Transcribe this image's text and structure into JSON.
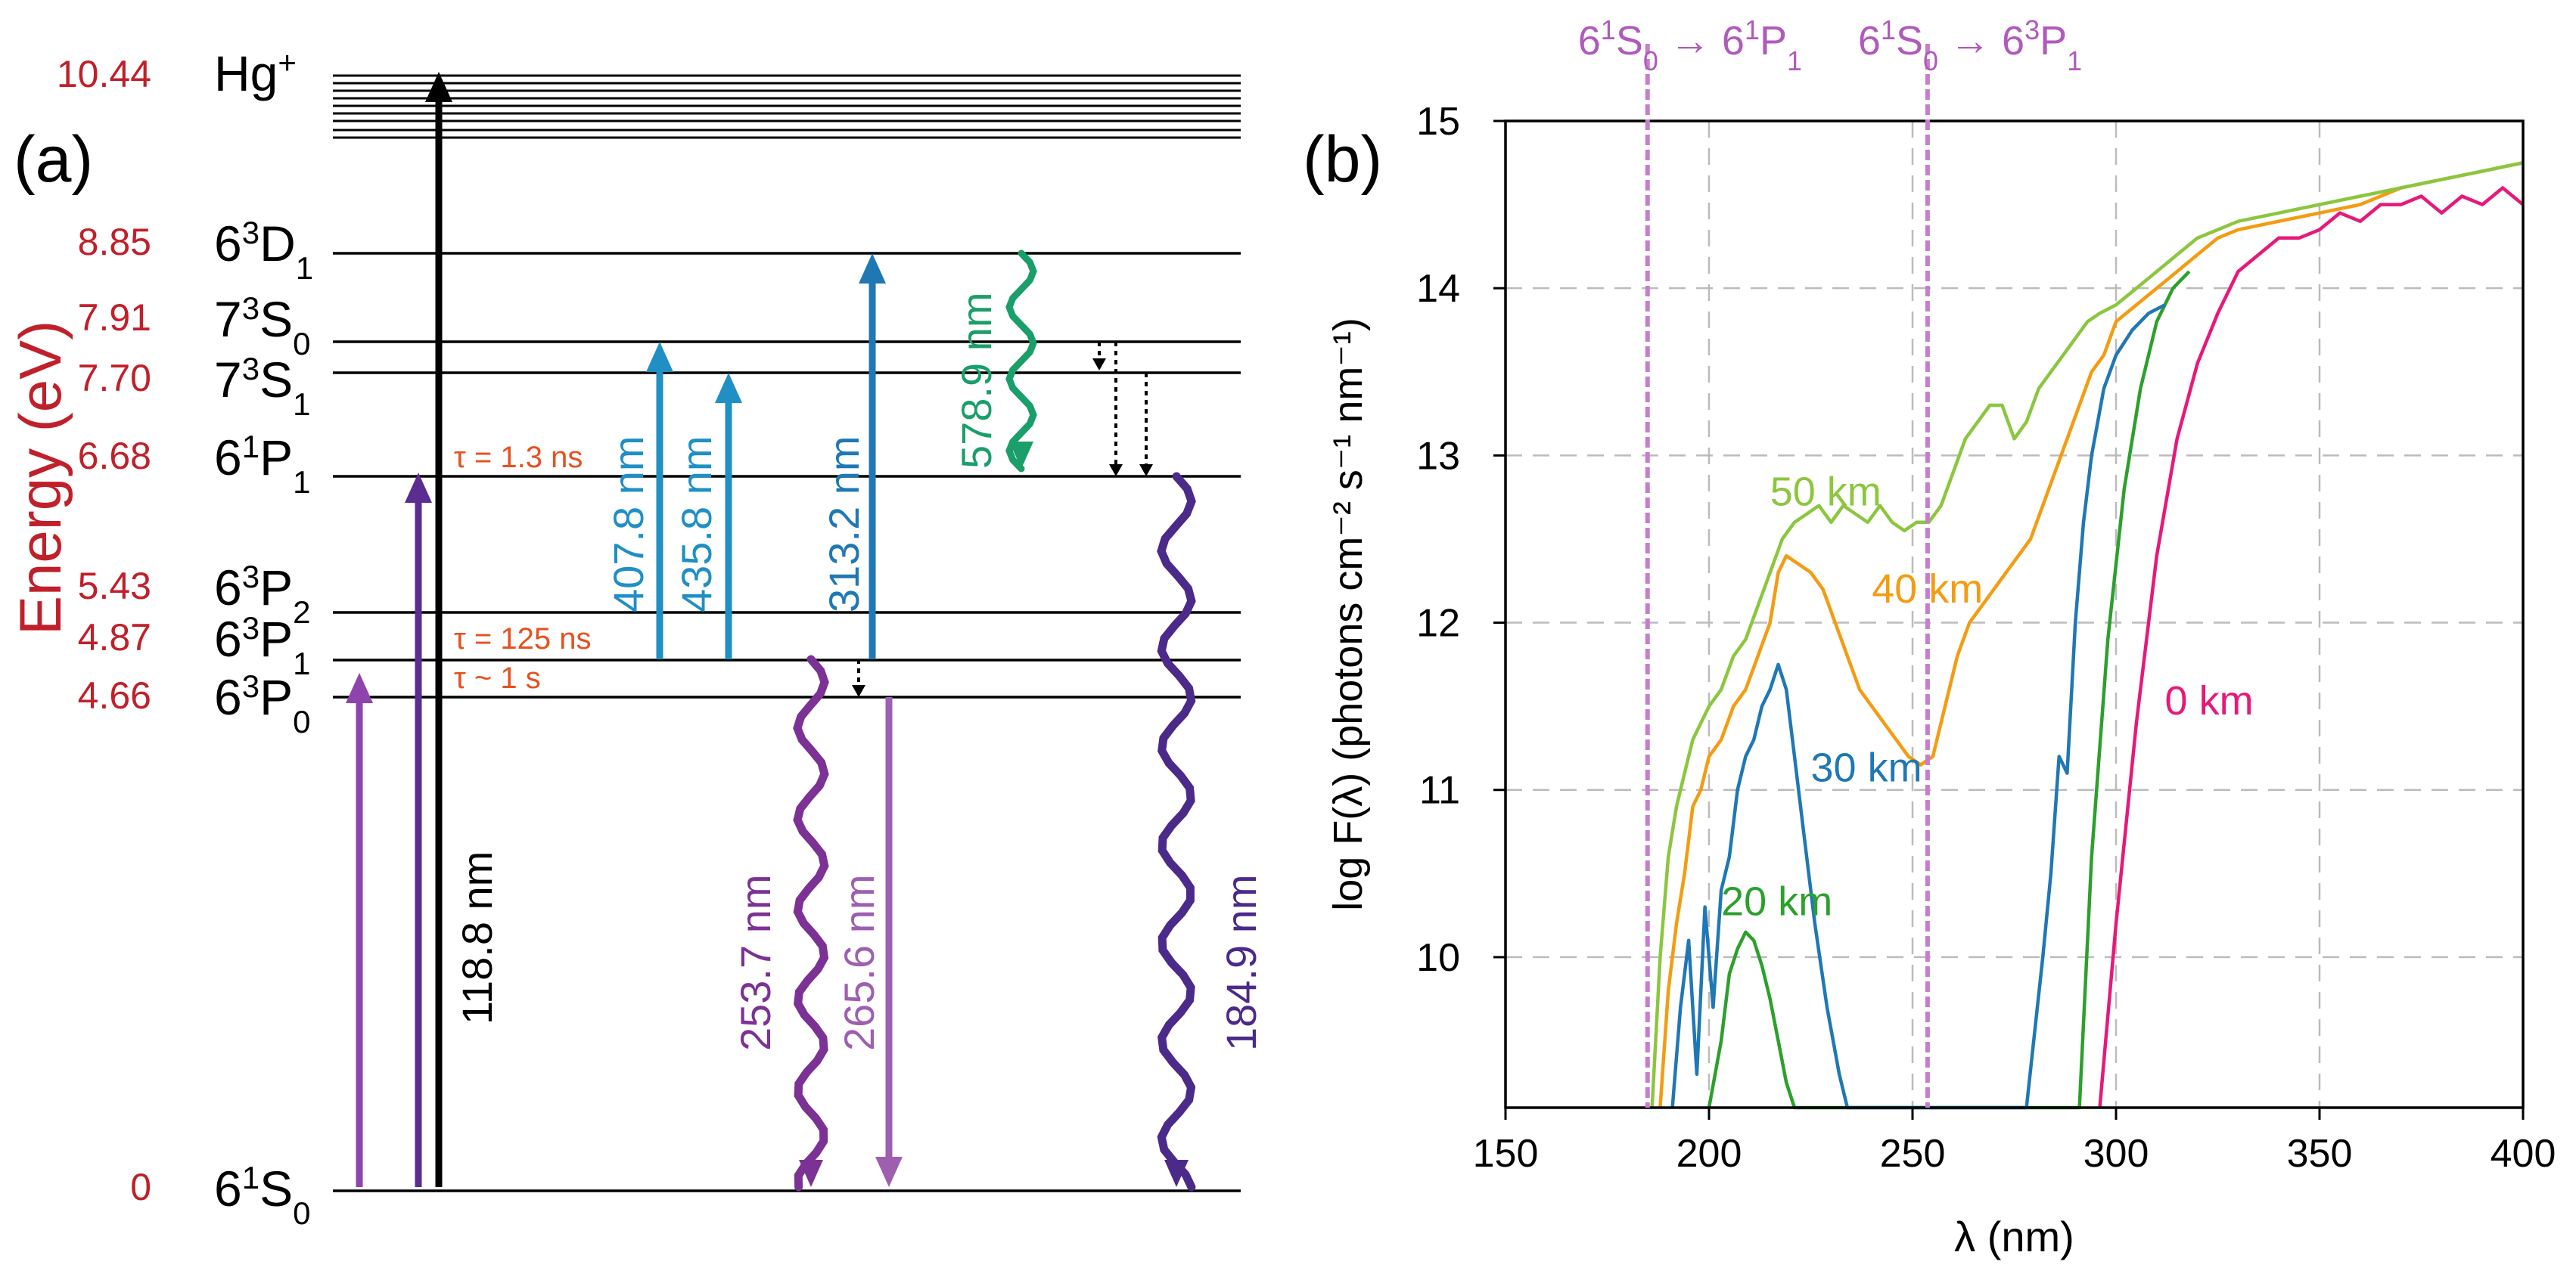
{
  "panel_a": {
    "label": "(a)",
    "axis_label": "Energy (eV)",
    "levels": [
      {
        "energy": 0,
        "energy_label": "0",
        "state": "6",
        "state_sup": "1",
        "state_sub": "S0"
      },
      {
        "energy": 4.66,
        "energy_label": "4.66",
        "state": "6",
        "state_sup": "3",
        "state_sub": "P0"
      },
      {
        "energy": 4.87,
        "energy_label": "4.87",
        "state": "6",
        "state_sup": "3",
        "state_sub": "P1"
      },
      {
        "energy": 5.43,
        "energy_label": "5.43",
        "state": "6",
        "state_sup": "3",
        "state_sub": "P2"
      },
      {
        "energy": 6.68,
        "energy_label": "6.68",
        "state": "6",
        "state_sup": "1",
        "state_sub": "P1"
      },
      {
        "energy": 7.7,
        "energy_label": "7.70",
        "state": "7",
        "state_sup": "3",
        "state_sub": "S1"
      },
      {
        "energy": 7.91,
        "energy_label": "7.91",
        "state": "7",
        "state_sup": "3",
        "state_sub": "S0"
      },
      {
        "energy": 8.85,
        "energy_label": "8.85",
        "state": "6",
        "state_sup": "3",
        "state_sub": "D1"
      },
      {
        "energy": 10.44,
        "energy_label": "10.44",
        "state": "Hg",
        "state_sup": "+",
        "state_sub": ""
      }
    ],
    "lifetimes": [
      {
        "text": "τ = 1.3 ns"
      },
      {
        "text": "τ = 125 ns"
      },
      {
        "text": "τ ~ 1 s"
      }
    ],
    "transitions": [
      {
        "label": "118.8 nm",
        "color": "#000000"
      },
      {
        "label": "407.8 nm",
        "color": "#1f8fc4"
      },
      {
        "label": "435.8 nm",
        "color": "#1f8fc4"
      },
      {
        "label": "313.2 nm",
        "color": "#1f78b4"
      },
      {
        "label": "578.9 nm",
        "color": "#1a9e6a"
      },
      {
        "label": "253.7 nm",
        "color": "#7b3294"
      },
      {
        "label": "265.6 nm",
        "color": "#9e5fb0"
      },
      {
        "label": "184.9 nm",
        "color": "#4b2a8a"
      }
    ],
    "colors": {
      "energy_labels": "#c0202a",
      "lifetimes": "#e8501e"
    }
  },
  "panel_b": {
    "label": "(b)",
    "resonance_labels": [
      {
        "lhs": "6",
        "lhs_sup": "1",
        "lhs_sub": "S",
        "lhs_sub2": "0",
        "rhs": "6",
        "rhs_sup": "1",
        "rhs_sub": "P",
        "rhs_sub2": "1",
        "wavelength": 184.9
      },
      {
        "lhs": "6",
        "lhs_sup": "1",
        "lhs_sub": "S",
        "lhs_sub2": "0",
        "rhs": "6",
        "rhs_sup": "3",
        "rhs_sub": "P",
        "rhs_sub2": "1",
        "wavelength": 253.7
      }
    ],
    "chart_data": {
      "type": "line",
      "xlabel": "λ (nm)",
      "ylabel": "log F(λ) (photons cm⁻² s⁻¹ nm⁻¹)",
      "xlim": [
        150,
        400
      ],
      "ylim": [
        9.1,
        15
      ],
      "xticks": [
        150,
        200,
        250,
        300,
        350,
        400
      ],
      "yticks": [
        10,
        11,
        12,
        13,
        14,
        15
      ],
      "grid": true,
      "series": [
        {
          "name": "0 km",
          "color": "#e6197a",
          "x": [
            296,
            300,
            305,
            310,
            315,
            320,
            325,
            330,
            335,
            340,
            345,
            350,
            355,
            360,
            365,
            370,
            375,
            380,
            385,
            390,
            395,
            400
          ],
          "y": [
            9.1,
            10.2,
            11.4,
            12.4,
            13.1,
            13.55,
            13.85,
            14.1,
            14.2,
            14.3,
            14.3,
            14.35,
            14.45,
            14.4,
            14.5,
            14.5,
            14.55,
            14.45,
            14.55,
            14.5,
            14.6,
            14.5
          ]
        },
        {
          "name": "20 km",
          "color": "#2ca02c",
          "x": [
            200,
            203,
            205,
            207,
            209,
            211,
            213,
            215,
            217,
            219,
            221,
            291,
            294,
            298,
            302,
            306,
            310,
            314,
            318
          ],
          "y": [
            9.1,
            9.5,
            9.9,
            10.05,
            10.15,
            10.1,
            9.95,
            9.75,
            9.5,
            9.25,
            9.1,
            9.1,
            10.6,
            11.9,
            12.8,
            13.4,
            13.8,
            14.0,
            14.1
          ]
        },
        {
          "name": "30 km",
          "color": "#1f78b4",
          "x": [
            191,
            193,
            195,
            197,
            199,
            201,
            203,
            205,
            207,
            209,
            211,
            213,
            215,
            217,
            219,
            221,
            223,
            226,
            229,
            232,
            234,
            278,
            282,
            284,
            286,
            288,
            290,
            292,
            294,
            297,
            300,
            304,
            308,
            312
          ],
          "y": [
            9.1,
            9.7,
            10.1,
            9.3,
            10.3,
            9.7,
            10.4,
            10.6,
            11.0,
            11.2,
            11.3,
            11.5,
            11.6,
            11.75,
            11.6,
            11.2,
            10.8,
            10.2,
            9.7,
            9.3,
            9.1,
            9.1,
            10.0,
            10.5,
            11.2,
            11.1,
            12.0,
            12.6,
            13.0,
            13.4,
            13.6,
            13.75,
            13.85,
            13.9
          ]
        },
        {
          "name": "40 km",
          "color": "#f39c12",
          "x": [
            188,
            190,
            192,
            194,
            196,
            198,
            200,
            203,
            206,
            209,
            212,
            215,
            217,
            219,
            222,
            225,
            228,
            231,
            234,
            237,
            240,
            243,
            246,
            249,
            252,
            255,
            258,
            261,
            264,
            267,
            270,
            273,
            276,
            279,
            282,
            285,
            288,
            291,
            294,
            297,
            300,
            305,
            310,
            315,
            320,
            325,
            330,
            340,
            350,
            360,
            370,
            380,
            390,
            400
          ],
          "y": [
            9.1,
            9.8,
            10.2,
            10.5,
            10.9,
            11.0,
            11.2,
            11.3,
            11.5,
            11.6,
            11.8,
            12.0,
            12.3,
            12.4,
            12.35,
            12.3,
            12.2,
            12.0,
            11.8,
            11.6,
            11.5,
            11.4,
            11.3,
            11.2,
            11.15,
            11.2,
            11.5,
            11.8,
            12.0,
            12.1,
            12.2,
            12.3,
            12.4,
            12.5,
            12.7,
            12.9,
            13.1,
            13.3,
            13.5,
            13.6,
            13.8,
            13.9,
            14.0,
            14.1,
            14.2,
            14.3,
            14.35,
            14.4,
            14.45,
            14.5,
            14.6,
            14.65,
            14.7,
            14.75
          ]
        },
        {
          "name": "50 km",
          "color": "#8cc63f",
          "x": [
            186,
            188,
            190,
            192,
            194,
            196,
            198,
            200,
            203,
            206,
            209,
            212,
            215,
            218,
            221,
            224,
            227,
            230,
            233,
            236,
            239,
            242,
            245,
            248,
            251,
            254,
            257,
            260,
            263,
            266,
            269,
            272,
            275,
            278,
            281,
            284,
            287,
            290,
            293,
            296,
            300,
            305,
            310,
            315,
            320,
            325,
            330,
            340,
            350,
            360,
            370,
            380,
            390,
            400
          ],
          "y": [
            9.1,
            10.0,
            10.6,
            10.9,
            11.1,
            11.3,
            11.4,
            11.5,
            11.6,
            11.8,
            11.9,
            12.1,
            12.3,
            12.5,
            12.6,
            12.65,
            12.7,
            12.6,
            12.7,
            12.65,
            12.6,
            12.7,
            12.6,
            12.55,
            12.6,
            12.6,
            12.7,
            12.9,
            13.1,
            13.2,
            13.3,
            13.3,
            13.1,
            13.2,
            13.4,
            13.5,
            13.6,
            13.7,
            13.8,
            13.85,
            13.9,
            14.0,
            14.1,
            14.2,
            14.3,
            14.35,
            14.4,
            14.45,
            14.5,
            14.55,
            14.6,
            14.65,
            14.7,
            14.75
          ]
        }
      ]
    }
  }
}
